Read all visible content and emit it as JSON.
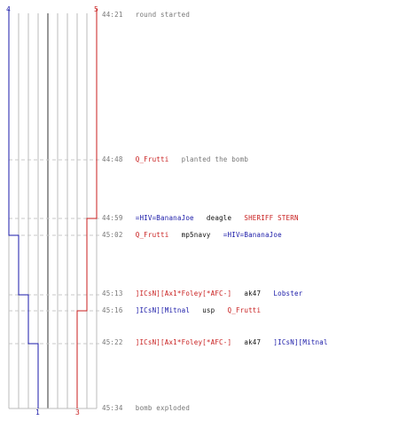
{
  "colors": {
    "ct": "#1a1aa8",
    "t": "#c81e1e",
    "grid": "#bbbbbb",
    "dash": "#c8c8c8",
    "text_gray": "#777777"
  },
  "counts": {
    "ct_start": "4",
    "t_start": "5",
    "ct_end": "1",
    "t_end": "3"
  },
  "events": [
    {
      "time": "44:21",
      "message": "round started"
    },
    {
      "time": "44:48",
      "player": "Q_Frutti",
      "message": "planted the bomb"
    },
    {
      "time": "44:59",
      "killer": "=HIV=BananaJoe",
      "weapon": "deagle",
      "victim": "SHERIFF STERN"
    },
    {
      "time": "45:02",
      "killer": "Q_Frutti",
      "weapon": "mp5navy",
      "victim": "=HIV=BananaJoe"
    },
    {
      "time": "45:13",
      "killer": "]ICsN][Ax1*Foley[*AFC-]",
      "weapon": "ak47",
      "victim": "Lobster"
    },
    {
      "time": "45:16",
      "killer": "]ICsN][Mitnal",
      "weapon": "usp",
      "victim": "Q_Frutti"
    },
    {
      "time": "45:22",
      "killer": "]ICsN][Ax1*Foley[*AFC-]",
      "weapon": "ak47",
      "victim": "]ICsN][Mitnal"
    },
    {
      "time": "45:34",
      "message": "bomb exploded"
    }
  ]
}
